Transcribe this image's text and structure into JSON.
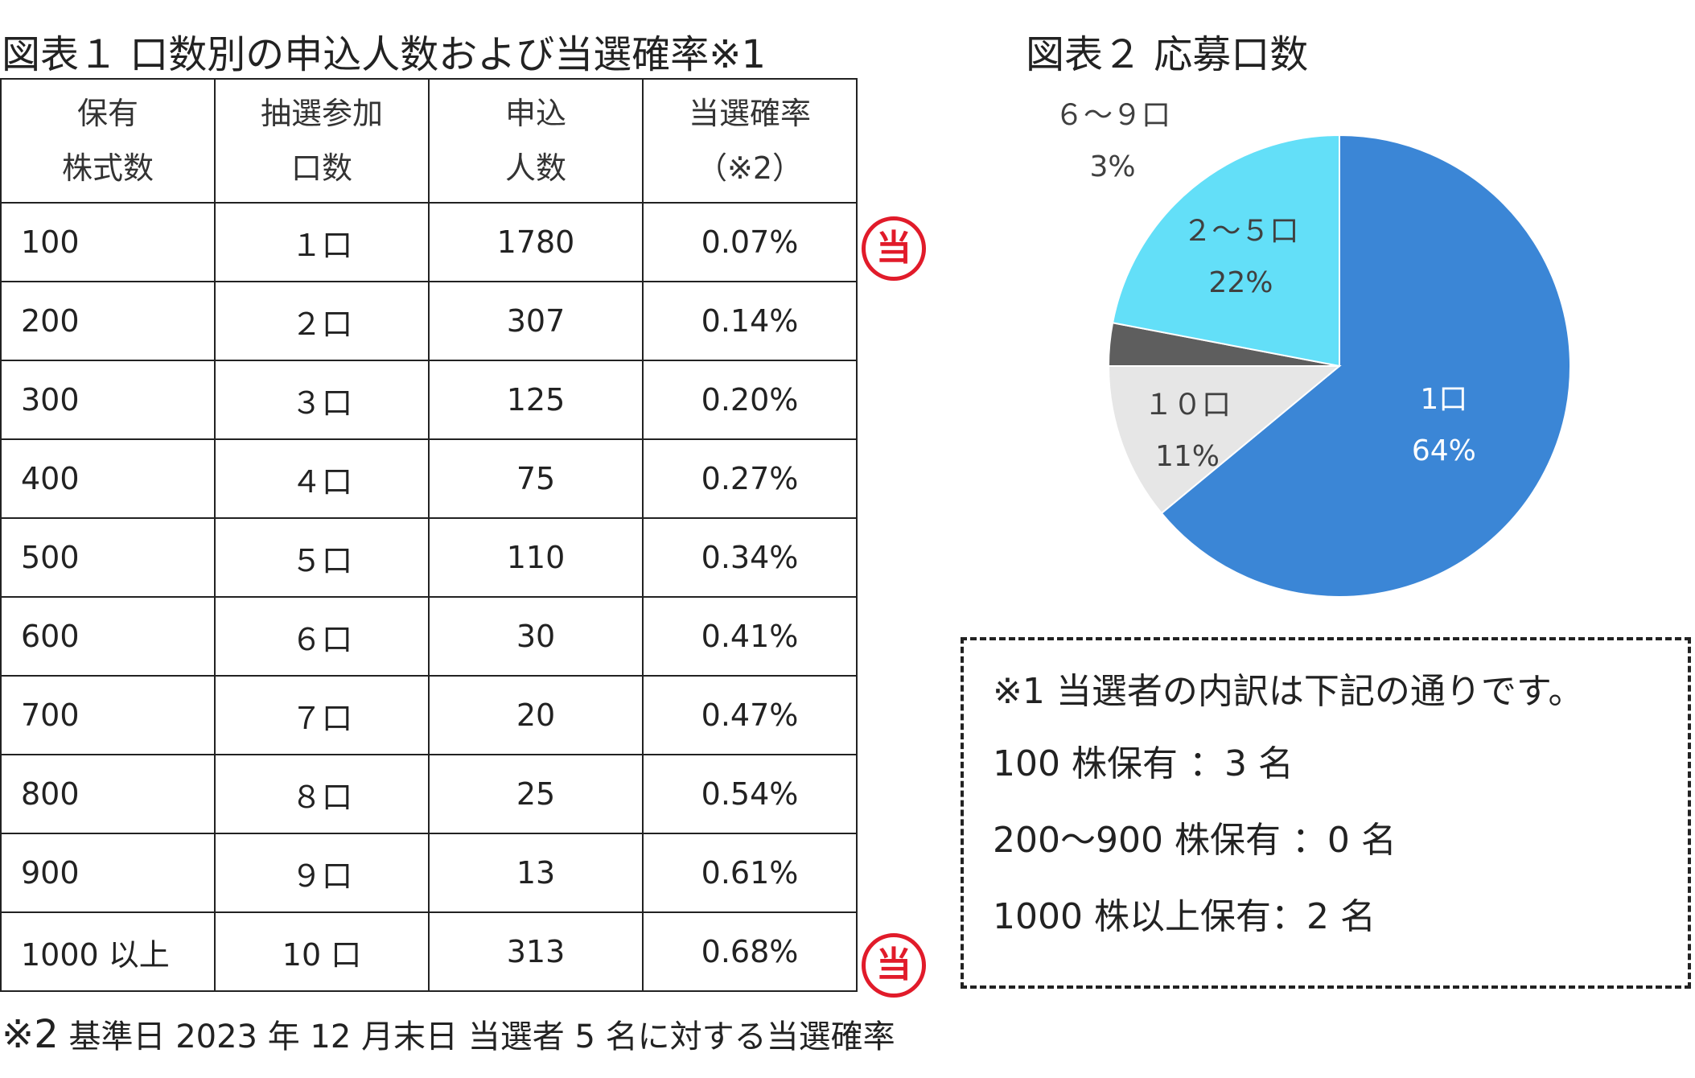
{
  "figure1": {
    "title": "図表１ 口数別の申込人数および当選確率※1",
    "headers": [
      [
        "保有",
        "株式数"
      ],
      [
        "抽選参加",
        "口数"
      ],
      [
        "申込",
        "人数"
      ],
      [
        "当選確率",
        "（※2）"
      ]
    ],
    "rows": [
      [
        "100",
        "１口",
        "1780",
        "0.07%"
      ],
      [
        "200",
        "２口",
        "307",
        "0.14%"
      ],
      [
        "300",
        "３口",
        "125",
        "0.20%"
      ],
      [
        "400",
        "４口",
        "75",
        "0.27%"
      ],
      [
        "500",
        "５口",
        "110",
        "0.34%"
      ],
      [
        "600",
        "６口",
        "30",
        "0.41%"
      ],
      [
        "700",
        "７口",
        "20",
        "0.47%"
      ],
      [
        "800",
        "８口",
        "25",
        "0.54%"
      ],
      [
        "900",
        "９口",
        "13",
        "0.61%"
      ],
      [
        "1000 以上",
        "10 口",
        "313",
        "0.68%"
      ]
    ],
    "stamp_label": "当",
    "stamp_color": "#e11b2a",
    "footnote_mark": "※2",
    "footnote_text": " 基準日 2023 年 12 月末日 当選者 5 名に対する当選確率"
  },
  "chart_data": {
    "type": "pie",
    "title": "図表２ 応募口数",
    "categories": [
      "1口",
      "１０口",
      "６～９口",
      "２～５口"
    ],
    "values": [
      64,
      11,
      3,
      22
    ],
    "value_labels": [
      "64%",
      "11%",
      "3%",
      "22%"
    ],
    "colors": [
      "#3b86d6",
      "#e6e6e6",
      "#5e5e5e",
      "#63dff8"
    ],
    "label_colors": [
      "#ffffff",
      "#404040",
      "#404040",
      "#404040"
    ]
  },
  "notes": {
    "lines": [
      "※1 当選者の内訳は下記の通りです。",
      "100 株保有 ：3 名",
      "200～900 株保有 ：0 名",
      "1000 株以上保有：2 名"
    ]
  }
}
